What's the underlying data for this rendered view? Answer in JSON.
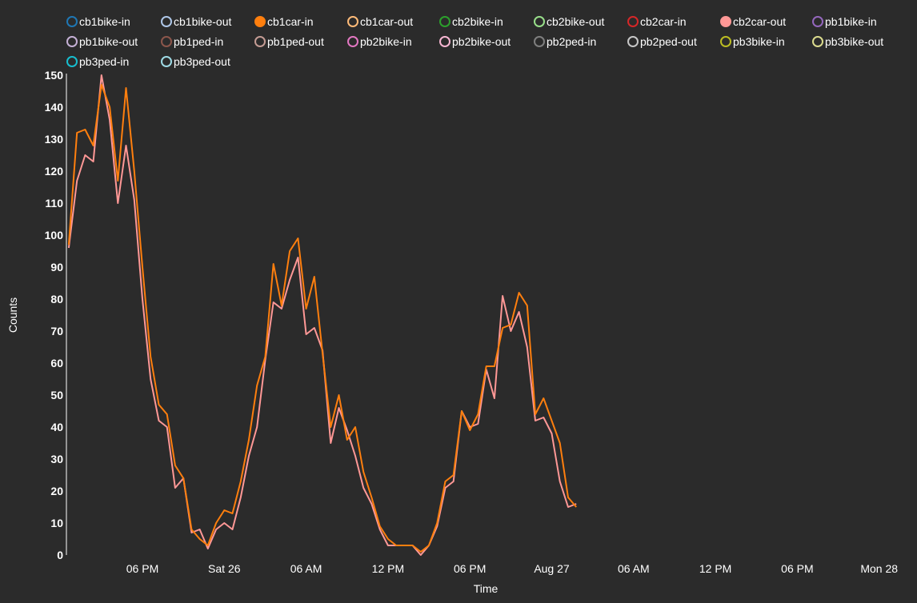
{
  "chart_data": {
    "type": "line",
    "title": "",
    "xlabel": "Time",
    "ylabel": "Counts",
    "ylim": [
      0,
      150
    ],
    "yticks": [
      0,
      10,
      20,
      30,
      40,
      50,
      60,
      70,
      80,
      90,
      100,
      110,
      120,
      130,
      140,
      150
    ],
    "xticks": [
      {
        "label": "06 PM",
        "hour": 18
      },
      {
        "label": "Sat 26",
        "hour": 24
      },
      {
        "label": "06 AM",
        "hour": 30
      },
      {
        "label": "12 PM",
        "hour": 36
      },
      {
        "label": "06 PM",
        "hour": 42
      },
      {
        "label": "Aug 27",
        "hour": 48
      },
      {
        "label": "06 AM",
        "hour": 54
      },
      {
        "label": "12 PM",
        "hour": 60
      },
      {
        "label": "06 PM",
        "hour": 66
      },
      {
        "label": "Mon 28",
        "hour": 72
      }
    ],
    "x_start_hour": 12.6,
    "x_step_hours": 0.6,
    "legend": [
      {
        "name": "cb1bike-in",
        "color": "#1f77b4",
        "active": false
      },
      {
        "name": "cb1bike-out",
        "color": "#aec7e8",
        "active": false
      },
      {
        "name": "cb1car-in",
        "color": "#ff7f0e",
        "active": true
      },
      {
        "name": "cb1car-out",
        "color": "#ffbb78",
        "active": false
      },
      {
        "name": "cb2bike-in",
        "color": "#2ca02c",
        "active": false
      },
      {
        "name": "cb2bike-out",
        "color": "#98df8a",
        "active": false
      },
      {
        "name": "cb2car-in",
        "color": "#d62728",
        "active": false
      },
      {
        "name": "cb2car-out",
        "color": "#ff9896",
        "active": true
      },
      {
        "name": "pb1bike-in",
        "color": "#9467bd",
        "active": false
      },
      {
        "name": "pb1bike-out",
        "color": "#c5b0d5",
        "active": false
      },
      {
        "name": "pb1ped-in",
        "color": "#8c564b",
        "active": false
      },
      {
        "name": "pb1ped-out",
        "color": "#c49c94",
        "active": false
      },
      {
        "name": "pb2bike-in",
        "color": "#e377c2",
        "active": false
      },
      {
        "name": "pb2bike-out",
        "color": "#f7b6d2",
        "active": false
      },
      {
        "name": "pb2ped-in",
        "color": "#7f7f7f",
        "active": false
      },
      {
        "name": "pb2ped-out",
        "color": "#c7c7c7",
        "active": false
      },
      {
        "name": "pb3bike-in",
        "color": "#bcbd22",
        "active": false
      },
      {
        "name": "pb3bike-out",
        "color": "#dbdb8d",
        "active": false
      },
      {
        "name": "pb3ped-in",
        "color": "#17becf",
        "active": false
      },
      {
        "name": "pb3ped-out",
        "color": "#9edae5",
        "active": false
      }
    ],
    "series": [
      {
        "name": "cb1car-in",
        "color": "#ff7f0e",
        "values": [
          97,
          132,
          133,
          128,
          147,
          140,
          117,
          146,
          120,
          90,
          62,
          47,
          44,
          28,
          24,
          8,
          5,
          3,
          10,
          14,
          13,
          23,
          36,
          53,
          62,
          91,
          78,
          95,
          99,
          77,
          87,
          63,
          40,
          50,
          36,
          40,
          26,
          18,
          9,
          5,
          3,
          3,
          3,
          1,
          3,
          10,
          23,
          25,
          45,
          39,
          44,
          59,
          59,
          71,
          72,
          82,
          78,
          44,
          49,
          42,
          35,
          18,
          15
        ]
      },
      {
        "name": "cb2car-out",
        "color": "#ff9896",
        "values": [
          96,
          117,
          125,
          123,
          150,
          136,
          110,
          128,
          111,
          80,
          55,
          42,
          40,
          21,
          24,
          7,
          8,
          2,
          8,
          10,
          8,
          18,
          31,
          40,
          61,
          79,
          77,
          86,
          93,
          69,
          71,
          64,
          35,
          46,
          39,
          31,
          21,
          16,
          8,
          3,
          3,
          3,
          3,
          0,
          3,
          9,
          21,
          23,
          45,
          40,
          41,
          58,
          49,
          81,
          70,
          76,
          65,
          42,
          43,
          38,
          23,
          15,
          16
        ]
      }
    ]
  }
}
